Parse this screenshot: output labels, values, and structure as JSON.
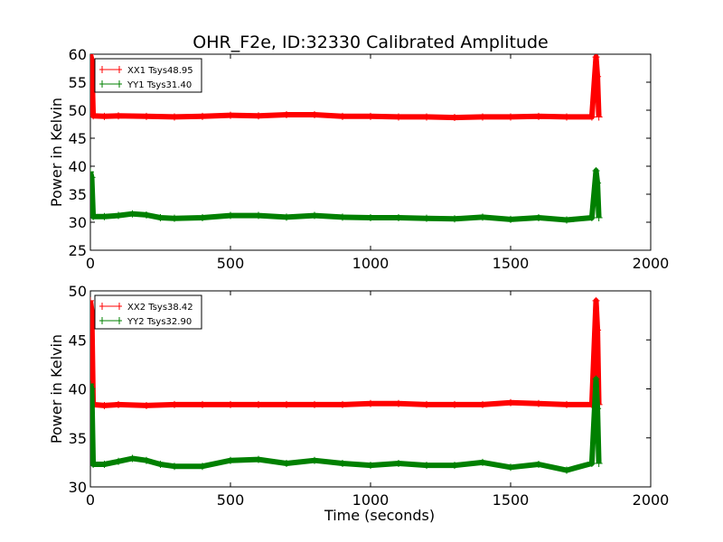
{
  "title": "OHR_F2e, ID:32330 Calibrated Amplitude",
  "chart_data": [
    {
      "type": "line",
      "title": "OHR_F2e, ID:32330 Calibrated Amplitude",
      "xlabel": "",
      "ylabel": "Power in Kelvin",
      "xlim": [
        0,
        2000
      ],
      "ylim": [
        25,
        60
      ],
      "xticks": [
        "0",
        "500",
        "1000",
        "1500",
        "2000"
      ],
      "yticks": [
        "25",
        "30",
        "35",
        "40",
        "45",
        "50",
        "55",
        "60"
      ],
      "legend_position": "top-left",
      "grid": false,
      "series": [
        {
          "name": "XX1 Tsys48.95",
          "color": "#ff0000",
          "x": [
            0,
            5,
            10,
            50,
            100,
            200,
            300,
            400,
            500,
            600,
            700,
            800,
            900,
            1000,
            1100,
            1200,
            1300,
            1400,
            1500,
            1600,
            1700,
            1790,
            1805,
            1810,
            1815
          ],
          "y": [
            60,
            59,
            49.0,
            48.9,
            49.0,
            48.9,
            48.8,
            48.9,
            49.1,
            49.0,
            49.2,
            49.2,
            48.9,
            48.9,
            48.8,
            48.8,
            48.7,
            48.8,
            48.8,
            48.9,
            48.8,
            48.8,
            59.5,
            56,
            48.8
          ]
        },
        {
          "name": "YY1 Tsys31.40",
          "color": "#008000",
          "x": [
            0,
            5,
            10,
            50,
            100,
            150,
            200,
            250,
            300,
            400,
            500,
            600,
            700,
            800,
            900,
            1000,
            1100,
            1200,
            1300,
            1400,
            1500,
            1600,
            1700,
            1790,
            1805,
            1810,
            1815
          ],
          "y": [
            39,
            38,
            31.0,
            31.0,
            31.2,
            31.5,
            31.3,
            30.8,
            30.7,
            30.8,
            31.2,
            31.2,
            30.9,
            31.2,
            30.9,
            30.8,
            30.8,
            30.7,
            30.6,
            30.9,
            30.5,
            30.8,
            30.4,
            30.8,
            39.2,
            37,
            30.8
          ]
        }
      ]
    },
    {
      "type": "line",
      "title": "",
      "xlabel": "Time (seconds)",
      "ylabel": "Power in Kelvin",
      "xlim": [
        0,
        2000
      ],
      "ylim": [
        30,
        50
      ],
      "xticks": [
        "0",
        "500",
        "1000",
        "1500",
        "2000"
      ],
      "yticks": [
        "30",
        "35",
        "40",
        "45",
        "50"
      ],
      "legend_position": "top-left",
      "grid": false,
      "series": [
        {
          "name": "XX2 Tsys38.42",
          "color": "#ff0000",
          "x": [
            0,
            5,
            10,
            50,
            100,
            200,
            300,
            400,
            500,
            600,
            700,
            800,
            900,
            1000,
            1100,
            1200,
            1300,
            1400,
            1500,
            1600,
            1700,
            1790,
            1805,
            1810,
            1815
          ],
          "y": [
            49,
            48,
            38.4,
            38.3,
            38.4,
            38.3,
            38.4,
            38.4,
            38.4,
            38.4,
            38.4,
            38.4,
            38.4,
            38.5,
            38.5,
            38.4,
            38.4,
            38.4,
            38.6,
            38.5,
            38.4,
            38.4,
            49,
            46,
            38.4
          ]
        },
        {
          "name": "YY2 Tsys32.90",
          "color": "#008000",
          "x": [
            0,
            5,
            10,
            50,
            100,
            150,
            200,
            250,
            300,
            400,
            500,
            600,
            700,
            800,
            900,
            1000,
            1100,
            1200,
            1300,
            1400,
            1500,
            1600,
            1700,
            1790,
            1805,
            1810,
            1815
          ],
          "y": [
            40.5,
            40,
            32.3,
            32.3,
            32.6,
            32.9,
            32.7,
            32.3,
            32.1,
            32.1,
            32.7,
            32.8,
            32.4,
            32.7,
            32.4,
            32.2,
            32.4,
            32.2,
            32.2,
            32.5,
            32.0,
            32.3,
            31.7,
            32.4,
            41,
            38,
            32.4
          ]
        }
      ]
    }
  ]
}
